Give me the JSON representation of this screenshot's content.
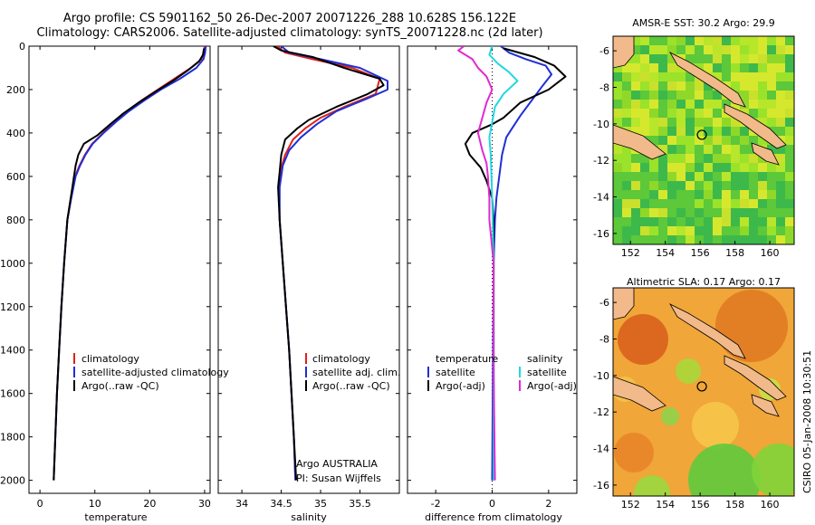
{
  "header": {
    "line1": "Argo profile: CS 5901162_50 26-Dec-2007 20071226_288 10.628S 156.122E",
    "line2": "Climatology: CARS2006. Satellite-adjusted climatology: synTS_20071228.nc (2d later)"
  },
  "credit": "CSIRO 05-Jan-2008 10:30:51",
  "colors": {
    "climatology": "#e0201b",
    "satellite": "#1f2fd6",
    "argo": "#000000",
    "salinity_sat": "#22d7e0",
    "salinity_argo": "#e02ad0"
  },
  "chart_data": [
    {
      "type": "line",
      "id": "temperature",
      "xlabel": "temperature",
      "ylabel": "",
      "xlim": [
        -2,
        31
      ],
      "ylim": [
        2060,
        0
      ],
      "xticks": [
        0,
        10,
        20,
        30
      ],
      "yticks": [
        0,
        200,
        400,
        600,
        800,
        1000,
        1200,
        1400,
        1600,
        1800,
        2000
      ],
      "legend": [
        "climatology",
        "satellite-adjusted climatology",
        "Argo(..raw -QC)"
      ],
      "series": [
        {
          "name": "climatology",
          "color": "#e0201b",
          "points": [
            [
              30.0,
              0
            ],
            [
              29.9,
              30
            ],
            [
              29.4,
              60
            ],
            [
              27.5,
              100
            ],
            [
              24.5,
              150
            ],
            [
              21.5,
              200
            ],
            [
              18.5,
              250
            ],
            [
              15.8,
              300
            ],
            [
              13.5,
              350
            ],
            [
              11.5,
              400
            ],
            [
              9.5,
              450
            ],
            [
              8.2,
              500
            ],
            [
              7.2,
              550
            ],
            [
              6.4,
              600
            ],
            [
              5.6,
              700
            ],
            [
              5.0,
              800
            ],
            [
              4.4,
              1000
            ],
            [
              3.9,
              1200
            ],
            [
              3.5,
              1400
            ],
            [
              3.1,
              1600
            ],
            [
              2.8,
              1800
            ],
            [
              2.5,
              2000
            ]
          ]
        },
        {
          "name": "satellite",
          "color": "#1f2fd6",
          "points": [
            [
              30.2,
              0
            ],
            [
              30.1,
              30
            ],
            [
              29.8,
              60
            ],
            [
              28.5,
              100
            ],
            [
              25.5,
              150
            ],
            [
              22.0,
              200
            ],
            [
              19.0,
              250
            ],
            [
              16.2,
              300
            ],
            [
              13.8,
              350
            ],
            [
              11.6,
              400
            ],
            [
              9.6,
              450
            ],
            [
              8.3,
              500
            ],
            [
              7.3,
              550
            ],
            [
              6.5,
              600
            ],
            [
              5.7,
              700
            ],
            [
              5.0,
              800
            ],
            [
              4.4,
              1000
            ],
            [
              3.9,
              1200
            ],
            [
              3.5,
              1400
            ],
            [
              3.1,
              1600
            ],
            [
              2.8,
              1800
            ],
            [
              2.5,
              2000
            ]
          ]
        },
        {
          "name": "Argo",
          "color": "#000000",
          "points": [
            [
              29.9,
              10
            ],
            [
              29.7,
              40
            ],
            [
              29.0,
              70
            ],
            [
              27.0,
              110
            ],
            [
              24.2,
              160
            ],
            [
              21.0,
              210
            ],
            [
              18.0,
              260
            ],
            [
              15.2,
              310
            ],
            [
              12.8,
              360
            ],
            [
              10.5,
              410
            ],
            [
              8.0,
              450
            ],
            [
              7.0,
              500
            ],
            [
              6.5,
              550
            ],
            [
              6.2,
              600
            ],
            [
              5.6,
              700
            ],
            [
              5.0,
              800
            ],
            [
              4.4,
              1000
            ],
            [
              3.9,
              1200
            ],
            [
              3.5,
              1400
            ],
            [
              3.1,
              1600
            ],
            [
              2.8,
              1800
            ],
            [
              2.5,
              2000
            ]
          ]
        }
      ]
    },
    {
      "type": "line",
      "id": "salinity",
      "xlabel": "salinity",
      "xlim": [
        33.7,
        36.0
      ],
      "ylim": [
        2060,
        0
      ],
      "xticks": [
        34,
        34.5,
        35,
        35.5
      ],
      "xtick_labels": [
        "34",
        "34.5",
        "35",
        "35.5"
      ],
      "legend": [
        "climatology",
        "satellite adj. clim.",
        "Argo(..raw -QC)"
      ],
      "annotation": [
        "Argo AUSTRALIA",
        "PI: Susan Wijffels"
      ],
      "series": [
        {
          "name": "climatology",
          "color": "#e0201b",
          "points": [
            [
              34.45,
              0
            ],
            [
              34.55,
              30
            ],
            [
              34.9,
              60
            ],
            [
              35.4,
              100
            ],
            [
              35.75,
              150
            ],
            [
              35.7,
              220
            ],
            [
              35.3,
              280
            ],
            [
              35.0,
              330
            ],
            [
              34.8,
              380
            ],
            [
              34.65,
              430
            ],
            [
              34.55,
              500
            ],
            [
              34.5,
              560
            ],
            [
              34.47,
              650
            ],
            [
              34.48,
              800
            ],
            [
              34.52,
              1000
            ],
            [
              34.56,
              1200
            ],
            [
              34.6,
              1400
            ],
            [
              34.63,
              1600
            ],
            [
              34.66,
              1800
            ],
            [
              34.68,
              2000
            ]
          ]
        },
        {
          "name": "satellite",
          "color": "#1f2fd6",
          "points": [
            [
              34.5,
              0
            ],
            [
              34.6,
              30
            ],
            [
              35.0,
              60
            ],
            [
              35.5,
              100
            ],
            [
              35.85,
              160
            ],
            [
              35.85,
              200
            ],
            [
              35.6,
              240
            ],
            [
              35.2,
              300
            ],
            [
              34.95,
              360
            ],
            [
              34.75,
              420
            ],
            [
              34.6,
              480
            ],
            [
              34.52,
              550
            ],
            [
              34.48,
              650
            ],
            [
              34.48,
              800
            ],
            [
              34.52,
              1000
            ],
            [
              34.56,
              1200
            ],
            [
              34.6,
              1400
            ],
            [
              34.63,
              1600
            ],
            [
              34.66,
              1800
            ],
            [
              34.68,
              2000
            ]
          ]
        },
        {
          "name": "Argo",
          "color": "#000000",
          "points": [
            [
              34.4,
              0
            ],
            [
              34.5,
              20
            ],
            [
              34.9,
              50
            ],
            [
              35.3,
              100
            ],
            [
              35.75,
              150
            ],
            [
              35.8,
              180
            ],
            [
              35.6,
              220
            ],
            [
              35.2,
              280
            ],
            [
              34.85,
              340
            ],
            [
              34.7,
              380
            ],
            [
              34.55,
              430
            ],
            [
              34.5,
              500
            ],
            [
              34.48,
              580
            ],
            [
              34.46,
              650
            ],
            [
              34.48,
              800
            ],
            [
              34.52,
              1000
            ],
            [
              34.56,
              1200
            ],
            [
              34.6,
              1400
            ],
            [
              34.63,
              1600
            ],
            [
              34.66,
              1800
            ],
            [
              34.69,
              2000
            ]
          ]
        }
      ]
    },
    {
      "type": "line",
      "id": "difference",
      "xlabel": "difference from climatology",
      "xlim": [
        -3,
        3
      ],
      "ylim": [
        2060,
        0
      ],
      "xticks": [
        -2,
        0,
        2
      ],
      "legend_left_title": "temperature",
      "legend_right_title": "salinity",
      "legend": [
        "satellite",
        "Argo(-adj)",
        "satellite",
        "Argo(-adj)"
      ],
      "series": [
        {
          "name": "temperature satellite",
          "color": "#1f2fd6",
          "points": [
            [
              0.3,
              0
            ],
            [
              0.6,
              30
            ],
            [
              1.2,
              60
            ],
            [
              1.9,
              90
            ],
            [
              2.1,
              130
            ],
            [
              1.8,
              180
            ],
            [
              1.4,
              250
            ],
            [
              1.0,
              320
            ],
            [
              0.7,
              380
            ],
            [
              0.5,
              420
            ],
            [
              0.35,
              500
            ],
            [
              0.25,
              600
            ],
            [
              0.15,
              700
            ],
            [
              0.1,
              800
            ],
            [
              0.05,
              1000
            ],
            [
              0.0,
              2000
            ]
          ]
        },
        {
          "name": "temperature Argo(-adj)",
          "color": "#000000",
          "points": [
            [
              0.4,
              10
            ],
            [
              1.5,
              50
            ],
            [
              2.2,
              90
            ],
            [
              2.6,
              140
            ],
            [
              2.0,
              200
            ],
            [
              1.0,
              260
            ],
            [
              0.4,
              330
            ],
            [
              0.0,
              360
            ],
            [
              -0.7,
              400
            ],
            [
              -0.95,
              450
            ],
            [
              -0.8,
              500
            ],
            [
              -0.4,
              560
            ],
            [
              -0.2,
              620
            ],
            [
              0.0,
              700
            ],
            [
              0.05,
              800
            ],
            [
              0.05,
              1000
            ],
            [
              0.05,
              2000
            ]
          ]
        },
        {
          "name": "salinity satellite",
          "color": "#22d7e0",
          "points": [
            [
              0.0,
              0
            ],
            [
              -0.1,
              40
            ],
            [
              0.2,
              80
            ],
            [
              0.6,
              120
            ],
            [
              0.9,
              160
            ],
            [
              0.4,
              220
            ],
            [
              0.1,
              280
            ],
            [
              0.0,
              350
            ],
            [
              -0.1,
              420
            ],
            [
              -0.05,
              500
            ],
            [
              0.0,
              700
            ],
            [
              0.05,
              1000
            ],
            [
              0.05,
              2000
            ]
          ]
        },
        {
          "name": "salinity Argo(-adj)",
          "color": "#e02ad0",
          "points": [
            [
              -1.0,
              0
            ],
            [
              -1.2,
              20
            ],
            [
              -0.7,
              60
            ],
            [
              -0.5,
              100
            ],
            [
              -0.2,
              140
            ],
            [
              0.0,
              200
            ],
            [
              -0.2,
              260
            ],
            [
              -0.35,
              330
            ],
            [
              -0.5,
              400
            ],
            [
              -0.35,
              480
            ],
            [
              -0.2,
              540
            ],
            [
              -0.15,
              600
            ],
            [
              -0.1,
              700
            ],
            [
              -0.1,
              800
            ],
            [
              0.05,
              1000
            ],
            [
              0.05,
              1500
            ],
            [
              0.1,
              2000
            ]
          ]
        }
      ]
    },
    {
      "type": "heatmap",
      "id": "sst_map",
      "title": "AMSR-E SST: 30.2 Argo: 29.9",
      "xticks": [
        152,
        154,
        156,
        158,
        160
      ],
      "yticks": [
        -6,
        -8,
        -10,
        -12,
        -14,
        -16
      ],
      "xlim": [
        151,
        161.4
      ],
      "ylim": [
        -16.6,
        -5.2
      ],
      "marker": {
        "lon": 156.1,
        "lat": -10.6
      }
    },
    {
      "type": "heatmap",
      "id": "sla_map",
      "title": "Altimetric SLA: 0.17 Argo: 0.17",
      "xticks": [
        152,
        154,
        156,
        158,
        160
      ],
      "yticks": [
        -6,
        -8,
        -10,
        -12,
        -14,
        -16
      ],
      "xlim": [
        151,
        161.4
      ],
      "ylim": [
        -16.6,
        -5.2
      ],
      "marker": {
        "lon": 156.1,
        "lat": -10.6
      }
    }
  ]
}
